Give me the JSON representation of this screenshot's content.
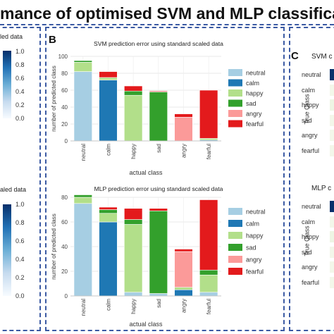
{
  "header": {
    "title": "mance of optimised SVM and MLP classification us"
  },
  "panels": {
    "left": {
      "top_label": "led data",
      "bottom_label": "aled data",
      "colorbar_ticks": [
        "1.0",
        "0.8",
        "0.6",
        "0.4",
        "0.2",
        "0.0"
      ]
    },
    "b": {
      "letter": "B"
    },
    "c": {
      "letter": "C",
      "top_title": "SVM c",
      "bottom_title": "MLP c",
      "ylabel": "True Class",
      "rows_top": [
        "neutral",
        "calm",
        "happy",
        "sad",
        "angry",
        "fearful"
      ],
      "rows_bottom": [
        "neutral",
        "calm",
        "happy",
        "sad",
        "angry",
        "fearful"
      ]
    }
  },
  "colors": {
    "neutral": "#a6cee3",
    "calm": "#1f78b4",
    "happy": "#b2df8a",
    "sad": "#33a02c",
    "angry": "#fb9a99",
    "fearful": "#e31a1c",
    "border": "#3b5aa3",
    "blue_dark": "#08306b"
  },
  "chart_data": [
    {
      "type": "bar",
      "stacked": true,
      "title": "SVM prediction error using standard scaled data",
      "xlabel": "actual class",
      "ylabel": "number of predicted class",
      "categories": [
        "neutral",
        "calm",
        "happy",
        "sad",
        "angry",
        "fearful"
      ],
      "ylim": [
        0,
        100
      ],
      "yticks": [
        0,
        20,
        40,
        60,
        80,
        100
      ],
      "grid": true,
      "legend": "right",
      "series": [
        {
          "name": "neutral",
          "values": [
            82,
            0,
            0,
            0,
            0,
            0
          ]
        },
        {
          "name": "calm",
          "values": [
            0,
            72,
            0,
            0,
            0,
            1
          ]
        },
        {
          "name": "happy",
          "values": [
            11,
            3,
            54,
            0,
            0,
            2
          ]
        },
        {
          "name": "sad",
          "values": [
            2,
            0,
            5,
            58,
            0,
            0
          ]
        },
        {
          "name": "angry",
          "values": [
            0,
            0,
            0,
            0,
            28,
            0
          ]
        },
        {
          "name": "fearful",
          "values": [
            0,
            7,
            6,
            1,
            4,
            57
          ]
        }
      ]
    },
    {
      "type": "bar",
      "stacked": true,
      "title": "MLP prediction error using standard scaled data",
      "xlabel": "actual class",
      "ylabel": "number of predicted class",
      "categories": [
        "neutral",
        "calm",
        "happy",
        "sad",
        "angry",
        "fearful"
      ],
      "ylim": [
        0,
        80
      ],
      "yticks": [
        0,
        20,
        40,
        60,
        80
      ],
      "grid": true,
      "legend": "right",
      "series": [
        {
          "name": "neutral",
          "values": [
            75,
            0,
            3,
            2,
            0,
            3
          ]
        },
        {
          "name": "calm",
          "values": [
            0,
            60,
            0,
            0,
            5,
            0
          ]
        },
        {
          "name": "happy",
          "values": [
            5,
            7,
            55,
            0,
            2,
            14
          ]
        },
        {
          "name": "sad",
          "values": [
            2,
            3,
            4,
            67,
            0,
            4
          ]
        },
        {
          "name": "angry",
          "values": [
            0,
            0,
            0,
            0,
            29,
            0
          ]
        },
        {
          "name": "fearful",
          "values": [
            0,
            2,
            9,
            2,
            2,
            57
          ]
        }
      ]
    }
  ]
}
